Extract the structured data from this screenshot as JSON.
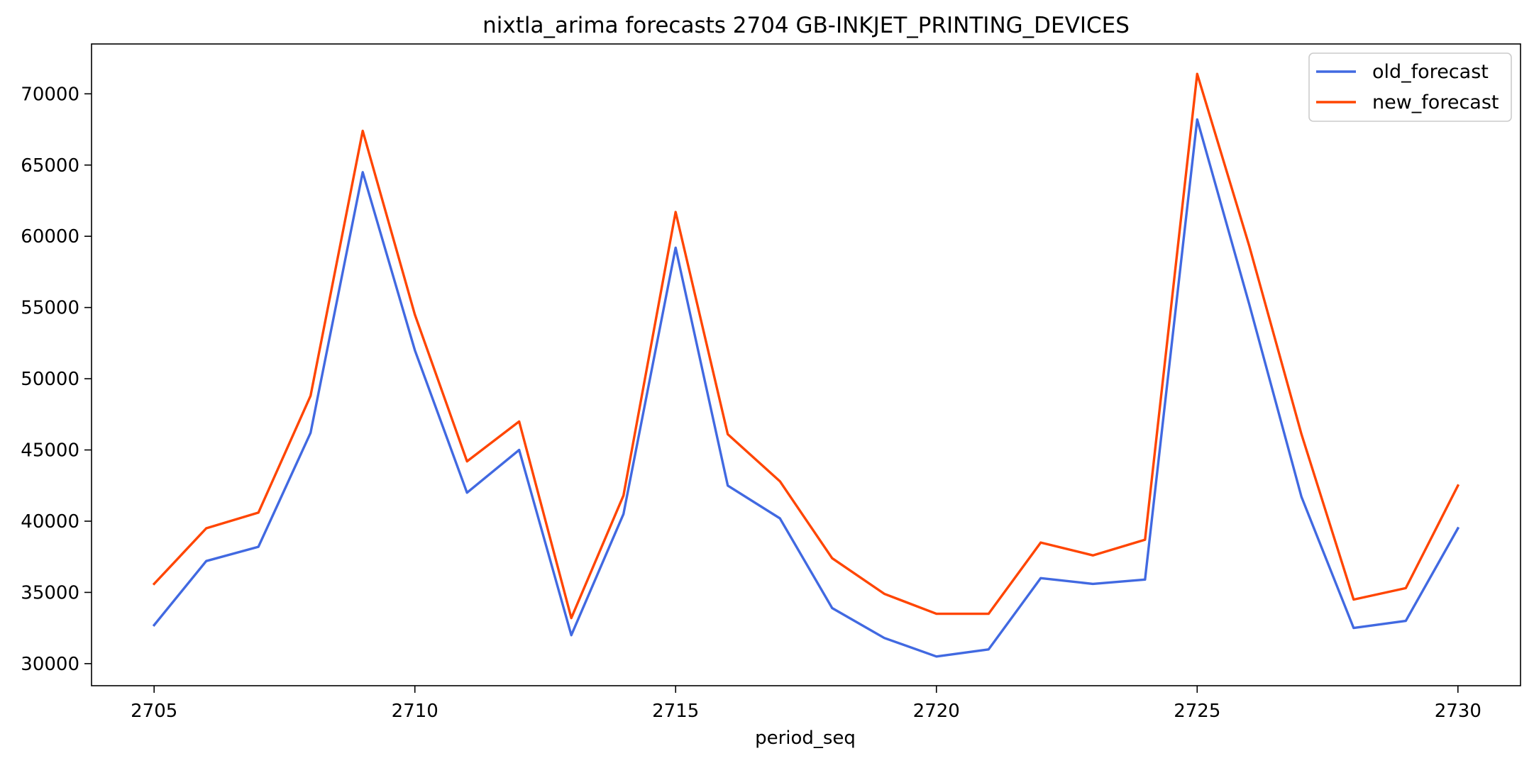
{
  "chart_data": {
    "type": "line",
    "title": "nixtla_arima forecasts 2704 GB-INKJET_PRINTING_DEVICES",
    "xlabel": "period_seq",
    "ylabel": "",
    "x": [
      2705,
      2706,
      2707,
      2708,
      2709,
      2710,
      2711,
      2712,
      2713,
      2714,
      2715,
      2716,
      2717,
      2718,
      2719,
      2720,
      2721,
      2722,
      2723,
      2724,
      2725,
      2726,
      2727,
      2728,
      2729,
      2730
    ],
    "xlim": [
      2703.8,
      2731.2
    ],
    "ylim": [
      28450,
      73500
    ],
    "xticks": [
      2705,
      2710,
      2715,
      2720,
      2725,
      2730
    ],
    "xtick_labels": [
      "2705",
      "2710",
      "2715",
      "2720",
      "2725",
      "2730"
    ],
    "yticks": [
      30000,
      35000,
      40000,
      45000,
      50000,
      55000,
      60000,
      65000,
      70000
    ],
    "ytick_labels": [
      "30000",
      "35000",
      "40000",
      "45000",
      "50000",
      "55000",
      "60000",
      "65000",
      "70000"
    ],
    "grid": false,
    "legend_position": "top-right",
    "series": [
      {
        "name": "old_forecast",
        "color": "#4169E1",
        "values": [
          32700,
          37200,
          38200,
          46200,
          64500,
          52000,
          42000,
          45000,
          32000,
          40500,
          59200,
          42500,
          40200,
          33900,
          31800,
          30500,
          31000,
          36000,
          35600,
          35900,
          68200,
          55200,
          41700,
          32500,
          33000,
          39500
        ]
      },
      {
        "name": "new_forecast",
        "color": "#FF4500",
        "values": [
          35600,
          39500,
          40600,
          48800,
          67400,
          54500,
          44200,
          47000,
          33200,
          41800,
          61700,
          46100,
          42800,
          37400,
          34900,
          33500,
          33500,
          38500,
          37600,
          38700,
          71400,
          59300,
          46100,
          34500,
          35300,
          42500
        ]
      }
    ]
  }
}
